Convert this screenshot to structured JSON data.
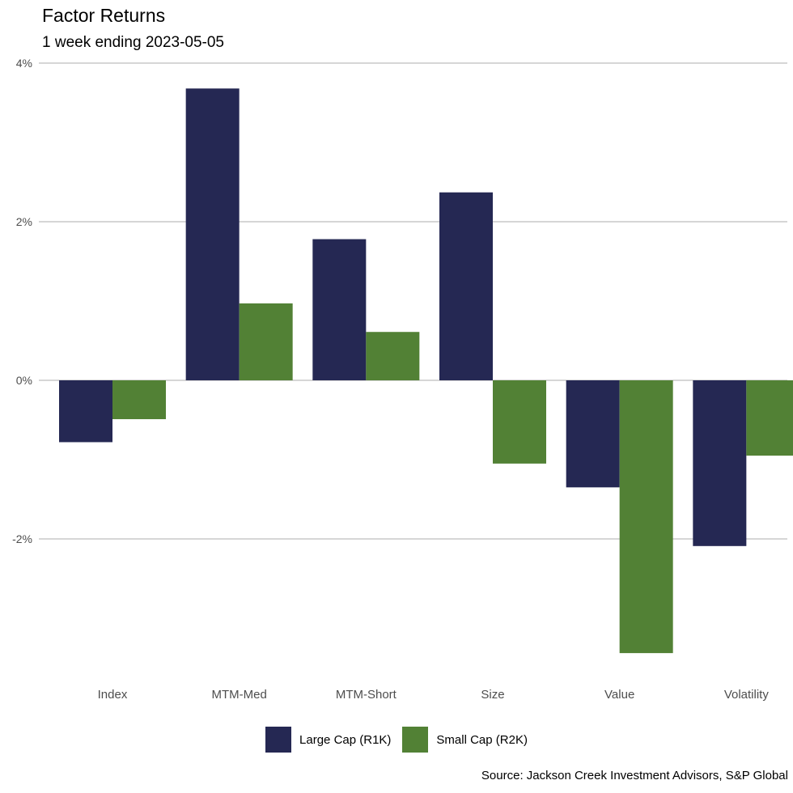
{
  "title": "Factor Returns",
  "subtitle": "1 week ending 2023-05-05",
  "source": "Source: Jackson Creek Investment Advisors, S&P Global",
  "colors": {
    "large": "#252853",
    "small": "#528135",
    "grid": "#c8c8c8"
  },
  "chart_data": {
    "type": "bar",
    "title": "Factor Returns",
    "subtitle": "1 week ending 2023-05-05",
    "xlabel": "",
    "ylabel": "",
    "categories": [
      "Index",
      "MTM-Med",
      "MTM-Short",
      "Size",
      "Value",
      "Volatility"
    ],
    "series": [
      {
        "name": "Large Cap (R1K)",
        "values": [
          -0.78,
          3.68,
          1.78,
          2.37,
          -1.35,
          -2.09
        ]
      },
      {
        "name": "Small Cap (R2K)",
        "values": [
          -0.49,
          0.97,
          0.61,
          -1.05,
          -3.44,
          -0.95
        ]
      }
    ],
    "ylim": [
      -3.75,
      4.1
    ],
    "yticks": [
      4,
      2,
      0,
      -2
    ],
    "ytick_labels": [
      "4%",
      "2%",
      "0%",
      "-2%"
    ],
    "grid": "horizontal",
    "legend_position": "bottom"
  }
}
